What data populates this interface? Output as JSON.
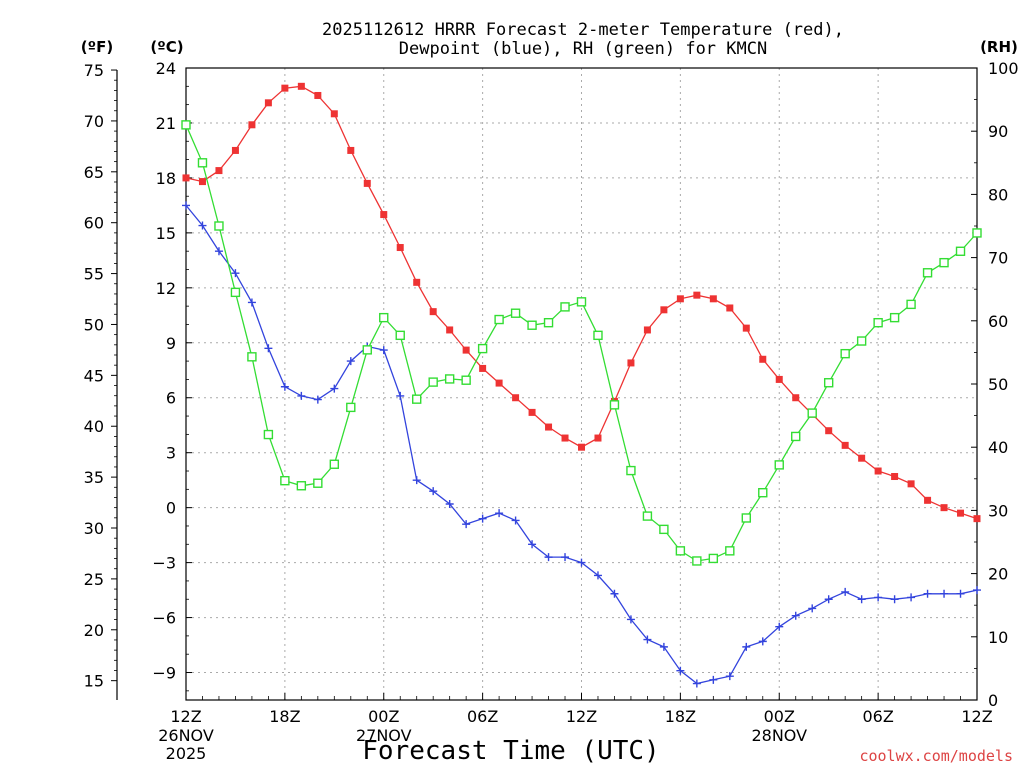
{
  "chart_data": {
    "type": "line",
    "title_line1": "2025112612 HRRR Forecast 2-meter Temperature (red),",
    "title_line2": "Dewpoint (blue), RH (green) for KMCN",
    "xlabel": "Forecast Time (UTC)",
    "credit": "coolwx.com/models",
    "left_axis_f_label": "(ºF)",
    "left_axis_c_label": "(ºC)",
    "right_axis_label": "(RH)",
    "x_range": [
      0,
      48
    ],
    "c_range": [
      -10.5,
      24
    ],
    "rh_range": [
      0,
      100
    ],
    "f_ticks": [
      75,
      70,
      65,
      60,
      55,
      50,
      45,
      40,
      35,
      30,
      25,
      20,
      15
    ],
    "c_ticks": [
      24,
      21,
      18,
      15,
      12,
      9,
      6,
      3,
      0,
      -3,
      -6,
      -9
    ],
    "rh_ticks": [
      100,
      90,
      80,
      70,
      60,
      50,
      40,
      30,
      20,
      10,
      0
    ],
    "x_ticks": [
      {
        "hour": 0,
        "label": "12Z",
        "sub1": "26NOV",
        "sub2": "2025"
      },
      {
        "hour": 6,
        "label": "18Z",
        "sub1": "",
        "sub2": ""
      },
      {
        "hour": 12,
        "label": "00Z",
        "sub1": "27NOV",
        "sub2": ""
      },
      {
        "hour": 18,
        "label": "06Z",
        "sub1": "",
        "sub2": ""
      },
      {
        "hour": 24,
        "label": "12Z",
        "sub1": "",
        "sub2": ""
      },
      {
        "hour": 30,
        "label": "18Z",
        "sub1": "",
        "sub2": ""
      },
      {
        "hour": 36,
        "label": "00Z",
        "sub1": "28NOV",
        "sub2": ""
      },
      {
        "hour": 42,
        "label": "06Z",
        "sub1": "",
        "sub2": ""
      },
      {
        "hour": 48,
        "label": "12Z",
        "sub1": "",
        "sub2": ""
      }
    ],
    "hours": [
      0,
      1,
      2,
      3,
      4,
      5,
      6,
      7,
      8,
      9,
      10,
      11,
      12,
      13,
      14,
      15,
      16,
      17,
      18,
      19,
      20,
      21,
      22,
      23,
      24,
      25,
      26,
      27,
      28,
      29,
      30,
      31,
      32,
      33,
      34,
      35,
      36,
      37,
      38,
      39,
      40,
      41,
      42,
      43,
      44,
      45,
      46,
      47,
      48
    ],
    "series": [
      {
        "name": "Temperature",
        "unit": "°C",
        "axis": "c",
        "color": "#ee3333",
        "marker": "filled-square",
        "values": [
          18.0,
          17.8,
          18.4,
          19.5,
          20.9,
          22.1,
          22.9,
          23.0,
          22.5,
          21.5,
          19.5,
          17.7,
          16.0,
          14.2,
          12.3,
          10.7,
          9.7,
          8.6,
          7.6,
          6.8,
          6.0,
          5.2,
          4.4,
          3.8,
          3.3,
          3.8,
          5.8,
          7.9,
          9.7,
          10.8,
          11.4,
          11.6,
          11.4,
          10.9,
          9.8,
          8.1,
          7.0,
          6.0,
          5.1,
          4.2,
          3.4,
          2.7,
          2.0,
          1.7,
          1.3,
          0.4,
          0.0,
          -0.3,
          -0.6
        ]
      },
      {
        "name": "Dewpoint",
        "unit": "°C",
        "axis": "c",
        "color": "#3344dd",
        "marker": "plus",
        "values": [
          16.5,
          15.4,
          14.0,
          12.8,
          11.2,
          8.7,
          6.6,
          6.1,
          5.9,
          6.5,
          8.0,
          8.8,
          8.6,
          6.1,
          1.5,
          0.9,
          0.2,
          -0.9,
          -0.6,
          -0.3,
          -0.7,
          -2.0,
          -2.7,
          -2.7,
          -3.0,
          -3.7,
          -4.7,
          -6.1,
          -7.2,
          -7.6,
          -8.9,
          -9.6,
          -9.4,
          -9.2,
          -7.6,
          -7.3,
          -6.5,
          -5.9,
          -5.5,
          -5.0,
          -4.6,
          -5.0,
          -4.9,
          -5.0,
          -4.9,
          -4.7,
          -4.7,
          -4.7,
          -4.5
        ]
      },
      {
        "name": "RH",
        "unit": "%",
        "axis": "rh",
        "color": "#33dd33",
        "marker": "open-square",
        "values": [
          91,
          85,
          75,
          64.5,
          54.3,
          42,
          34.7,
          33.9,
          34.3,
          37.3,
          46.3,
          55.4,
          60.5,
          57.7,
          47.6,
          50.3,
          50.8,
          50.6,
          55.6,
          60.2,
          61.2,
          59.3,
          59.7,
          62.2,
          63.0,
          57.7,
          46.7,
          36.3,
          29.1,
          27.0,
          23.6,
          22.0,
          22.4,
          23.6,
          28.8,
          32.8,
          37.2,
          41.7,
          45.4,
          50.2,
          54.8,
          56.8,
          59.7,
          60.5,
          62.6,
          67.6,
          69.2,
          71.0,
          73.9
        ]
      }
    ]
  }
}
